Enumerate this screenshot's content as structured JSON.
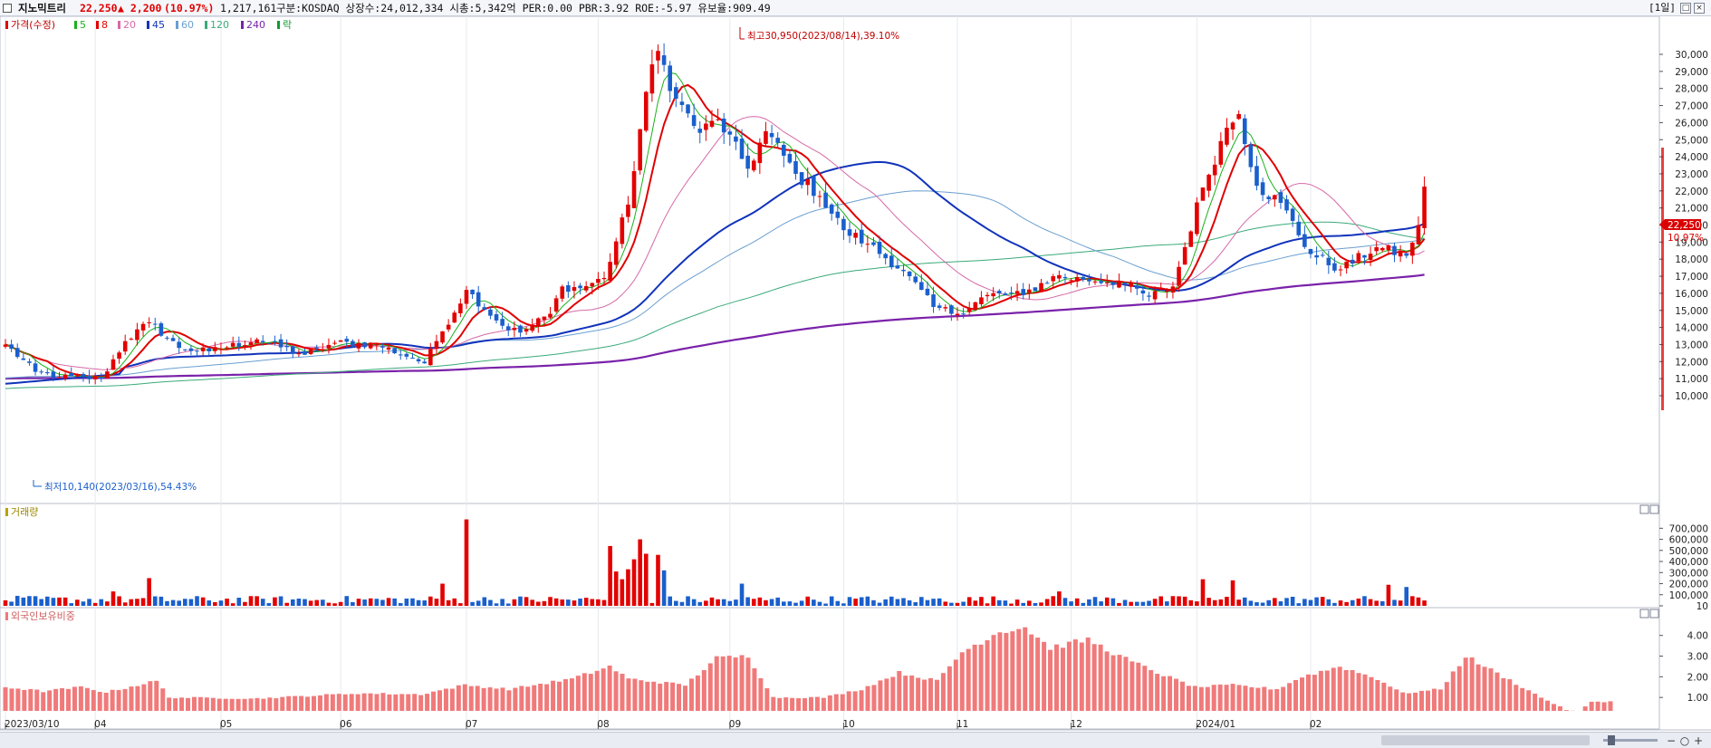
{
  "header": {
    "stock_name": "지노믹트리",
    "price": "22,250",
    "change": "▲ 2,200",
    "change_pct": "(10.97%)",
    "volume": "1,217,161",
    "info": "구분:KOSDAQ 상장수:24,012,334 시총:5,342억 PER:0.00 PBR:3.92 ROE:-5.97 유보율:909.49",
    "period_label": "[1일]"
  },
  "legend": {
    "price_label": "가격(수정)",
    "ma_items": [
      {
        "label": "5",
        "color": "#19b219"
      },
      {
        "label": "8",
        "color": "#e00000"
      },
      {
        "label": "20",
        "color": "#d66aa8"
      },
      {
        "label": "45",
        "color": "#1133bb"
      },
      {
        "label": "60",
        "color": "#6a9fd0"
      },
      {
        "label": "120",
        "color": "#3aaa7a"
      },
      {
        "label": "240",
        "color": "#7a22aa"
      },
      {
        "label": "락",
        "color": "#119933"
      }
    ]
  },
  "annotations": {
    "high": "최고30,950(2023/08/14),39.10%",
    "low": "최저10,140(2023/03/16),54.43%",
    "last_price": "22,250",
    "last_pct": "10.97%"
  },
  "panels": {
    "volume_title": "거래량",
    "foreign_title": "외국인보유비중"
  },
  "colors": {
    "up": "#e30000",
    "down": "#1a5fcc",
    "foreign_bar": "#f07a7a",
    "background": "#ffffff"
  },
  "chart_data": [
    {
      "type": "candlestick",
      "title": "지노믹트리",
      "ylabel": "가격(수정)",
      "ylim": [
        9500,
        31200
      ],
      "y_ticks": [
        10000,
        11000,
        12000,
        13000,
        14000,
        15000,
        16000,
        17000,
        18000,
        19000,
        20000,
        21000,
        22000,
        23000,
        24000,
        25000,
        26000,
        27000,
        28000,
        29000,
        30000
      ],
      "x_labels": [
        "2023/03/10",
        "04",
        "05",
        "06",
        "07",
        "08",
        "09",
        "10",
        "11",
        "12",
        "2024/01",
        "02"
      ],
      "x_label_index": [
        0,
        15,
        36,
        56,
        77,
        99,
        121,
        140,
        159,
        178,
        199,
        218
      ],
      "close_keypoints": [
        [
          0,
          13000
        ],
        [
          5,
          11400
        ],
        [
          9,
          11100
        ],
        [
          16,
          11000
        ],
        [
          20,
          13200
        ],
        [
          24,
          14300
        ],
        [
          29,
          12800
        ],
        [
          34,
          12600
        ],
        [
          42,
          13300
        ],
        [
          50,
          12400
        ],
        [
          55,
          13100
        ],
        [
          62,
          13000
        ],
        [
          68,
          12200
        ],
        [
          70,
          11900
        ],
        [
          72,
          13200
        ],
        [
          77,
          16200
        ],
        [
          83,
          14100
        ],
        [
          86,
          13700
        ],
        [
          91,
          14800
        ],
        [
          93,
          16400
        ],
        [
          96,
          16300
        ],
        [
          100,
          16900
        ],
        [
          104,
          21200
        ],
        [
          107,
          27800
        ],
        [
          109,
          30200
        ],
        [
          112,
          27400
        ],
        [
          116,
          25400
        ],
        [
          119,
          26200
        ],
        [
          124,
          23300
        ],
        [
          127,
          25500
        ],
        [
          132,
          23000
        ],
        [
          136,
          21700
        ],
        [
          140,
          19700
        ],
        [
          144,
          18900
        ],
        [
          150,
          17300
        ],
        [
          155,
          15200
        ],
        [
          159,
          14800
        ],
        [
          164,
          15900
        ],
        [
          170,
          15900
        ],
        [
          175,
          17000
        ],
        [
          180,
          16800
        ],
        [
          186,
          16700
        ],
        [
          191,
          15800
        ],
        [
          195,
          16400
        ],
        [
          200,
          22200
        ],
        [
          204,
          25700
        ],
        [
          206,
          26500
        ],
        [
          209,
          22300
        ],
        [
          213,
          21300
        ],
        [
          218,
          18300
        ],
        [
          223,
          17400
        ],
        [
          229,
          18700
        ],
        [
          234,
          18200
        ],
        [
          236,
          20000
        ],
        [
          237,
          22250
        ]
      ],
      "last_close": 22250,
      "high": {
        "value": 30950,
        "date": "2023/08/14"
      },
      "low": {
        "value": 10140,
        "date": "2023/03/16"
      }
    },
    {
      "type": "bar",
      "title": "거래량",
      "ylim": [
        0,
        800000
      ],
      "y_ticks": [
        10,
        100000,
        200000,
        300000,
        400000,
        500000,
        600000,
        700000
      ],
      "spikes": [
        [
          77,
          780000
        ],
        [
          101,
          540000
        ],
        [
          106,
          600000
        ],
        [
          107,
          470000
        ],
        [
          105,
          420000
        ],
        [
          104,
          330000
        ],
        [
          102,
          310000
        ],
        [
          103,
          240000
        ],
        [
          24,
          250000
        ],
        [
          109,
          460000
        ],
        [
          110,
          320000
        ],
        [
          200,
          240000
        ],
        [
          231,
          190000
        ],
        [
          205,
          230000
        ],
        [
          176,
          130000
        ],
        [
          18,
          130000
        ],
        [
          73,
          200000
        ],
        [
          234,
          170000
        ],
        [
          123,
          200000
        ]
      ]
    },
    {
      "type": "bar",
      "title": "외국인보유비중",
      "ylim": [
        0.5,
        5
      ],
      "y_ticks": [
        1.0,
        2.0,
        3.0,
        4.0
      ],
      "keypoints": [
        [
          0,
          1.5
        ],
        [
          6,
          1.3
        ],
        [
          12,
          1.5
        ],
        [
          16,
          1.25
        ],
        [
          24,
          1.8
        ],
        [
          26,
          1.0
        ],
        [
          40,
          0.95
        ],
        [
          56,
          1.2
        ],
        [
          66,
          1.15
        ],
        [
          73,
          1.6
        ],
        [
          80,
          1.4
        ],
        [
          90,
          1.9
        ],
        [
          96,
          2.5
        ],
        [
          99,
          1.9
        ],
        [
          108,
          1.6
        ],
        [
          113,
          2.9
        ],
        [
          118,
          3.0
        ],
        [
          122,
          1.0
        ],
        [
          130,
          1.0
        ],
        [
          136,
          1.4
        ],
        [
          142,
          2.2
        ],
        [
          148,
          1.8
        ],
        [
          152,
          3.2
        ],
        [
          158,
          4.2
        ],
        [
          162,
          4.4
        ],
        [
          166,
          3.4
        ],
        [
          172,
          3.8
        ],
        [
          177,
          3.0
        ],
        [
          183,
          2.2
        ],
        [
          189,
          1.5
        ],
        [
          195,
          1.6
        ],
        [
          202,
          1.4
        ],
        [
          206,
          2.0
        ],
        [
          212,
          2.5
        ],
        [
          218,
          1.9
        ],
        [
          222,
          1.2
        ],
        [
          228,
          1.4
        ],
        [
          232,
          3.0
        ],
        [
          238,
          2.0
        ],
        [
          244,
          1.0
        ],
        [
          248,
          0.4
        ],
        [
          250,
          0.3
        ],
        [
          252,
          0.8
        ],
        [
          255,
          0.8
        ]
      ]
    }
  ]
}
